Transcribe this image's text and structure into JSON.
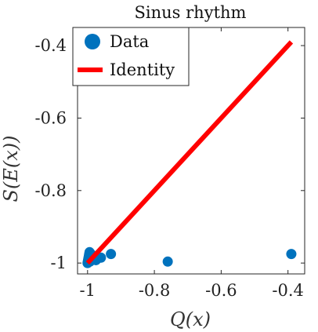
{
  "chart_data": {
    "type": "scatter",
    "title": "Sinus rhythm",
    "xlabel": "Q(x)",
    "ylabel": "S(E(x))",
    "xlim": [
      -1.03,
      -0.35
    ],
    "ylim": [
      -1.03,
      -0.35
    ],
    "x_ticks": [
      -1,
      -0.8,
      -0.6,
      -0.4
    ],
    "x_tick_labels": [
      "-1",
      "-0.8",
      "-0.6",
      "-0.4"
    ],
    "y_ticks": [
      -1,
      -0.8,
      -0.6,
      -0.4
    ],
    "y_tick_labels": [
      "-1",
      "-0.8",
      "-0.6",
      "-0.4"
    ],
    "grid": false,
    "legend_position": "top-left",
    "series": [
      {
        "name": "Data",
        "kind": "scatter",
        "color": "#0072BD",
        "x": [
          -1.0,
          -0.999,
          -0.998,
          -0.997,
          -0.996,
          -0.995,
          -0.994,
          -0.993,
          -0.992,
          -0.99,
          -0.985,
          -0.975,
          -0.96,
          -0.93,
          -0.76,
          -0.39
        ],
        "y": [
          -1.0,
          -0.995,
          -0.99,
          -0.985,
          -0.98,
          -0.975,
          -0.97,
          -0.996,
          -0.99,
          -0.975,
          -0.985,
          -0.992,
          -0.985,
          -0.975,
          -0.996,
          -0.975
        ]
      },
      {
        "name": "Identity",
        "kind": "line",
        "color": "#FF0000",
        "x": [
          -1.0,
          -0.39
        ],
        "y": [
          -1.0,
          -0.39
        ]
      }
    ]
  }
}
